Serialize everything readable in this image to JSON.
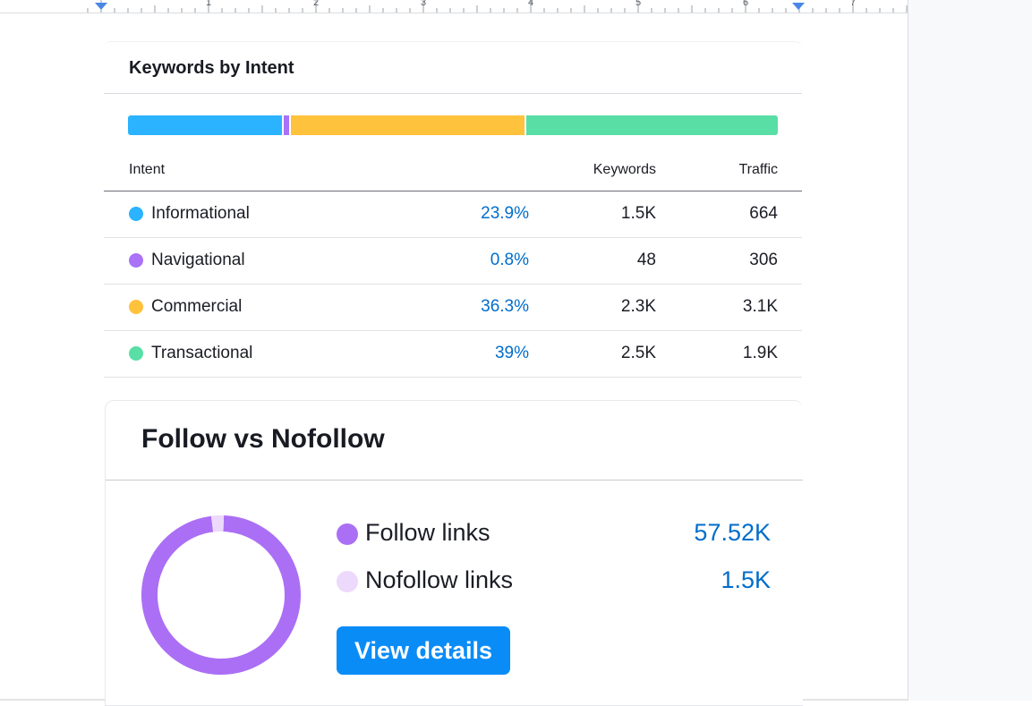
{
  "ruler": {
    "numbers": [
      "1",
      "2",
      "3",
      "4",
      "5",
      "6",
      "7"
    ]
  },
  "keywords_by_intent": {
    "title": "Keywords by Intent",
    "columns": {
      "intent": "Intent",
      "keywords": "Keywords",
      "traffic": "Traffic"
    },
    "rows": [
      {
        "intent": "Informational",
        "percent": "23.9%",
        "share": 23.9,
        "keywords": "1.5K",
        "traffic": "664",
        "color": "#2bb3ff"
      },
      {
        "intent": "Navigational",
        "percent": "0.8%",
        "share": 0.8,
        "keywords": "48",
        "traffic": "306",
        "color": "#a972f7"
      },
      {
        "intent": "Commercial",
        "percent": "36.3%",
        "share": 36.3,
        "keywords": "2.3K",
        "traffic": "3.1K",
        "color": "#ffc23c"
      },
      {
        "intent": "Transactional",
        "percent": "39%",
        "share": 39,
        "keywords": "2.5K",
        "traffic": "1.9K",
        "color": "#59dea6"
      }
    ]
  },
  "follow_nofollow": {
    "title": "Follow vs Nofollow",
    "items": [
      {
        "label": "Follow links",
        "value": "57.52K",
        "amount": 57520,
        "color": "#ab6ff5"
      },
      {
        "label": "Nofollow links",
        "value": "1.5K",
        "amount": 1500,
        "color": "#ecd9fc"
      }
    ],
    "button_label": "View details"
  }
}
